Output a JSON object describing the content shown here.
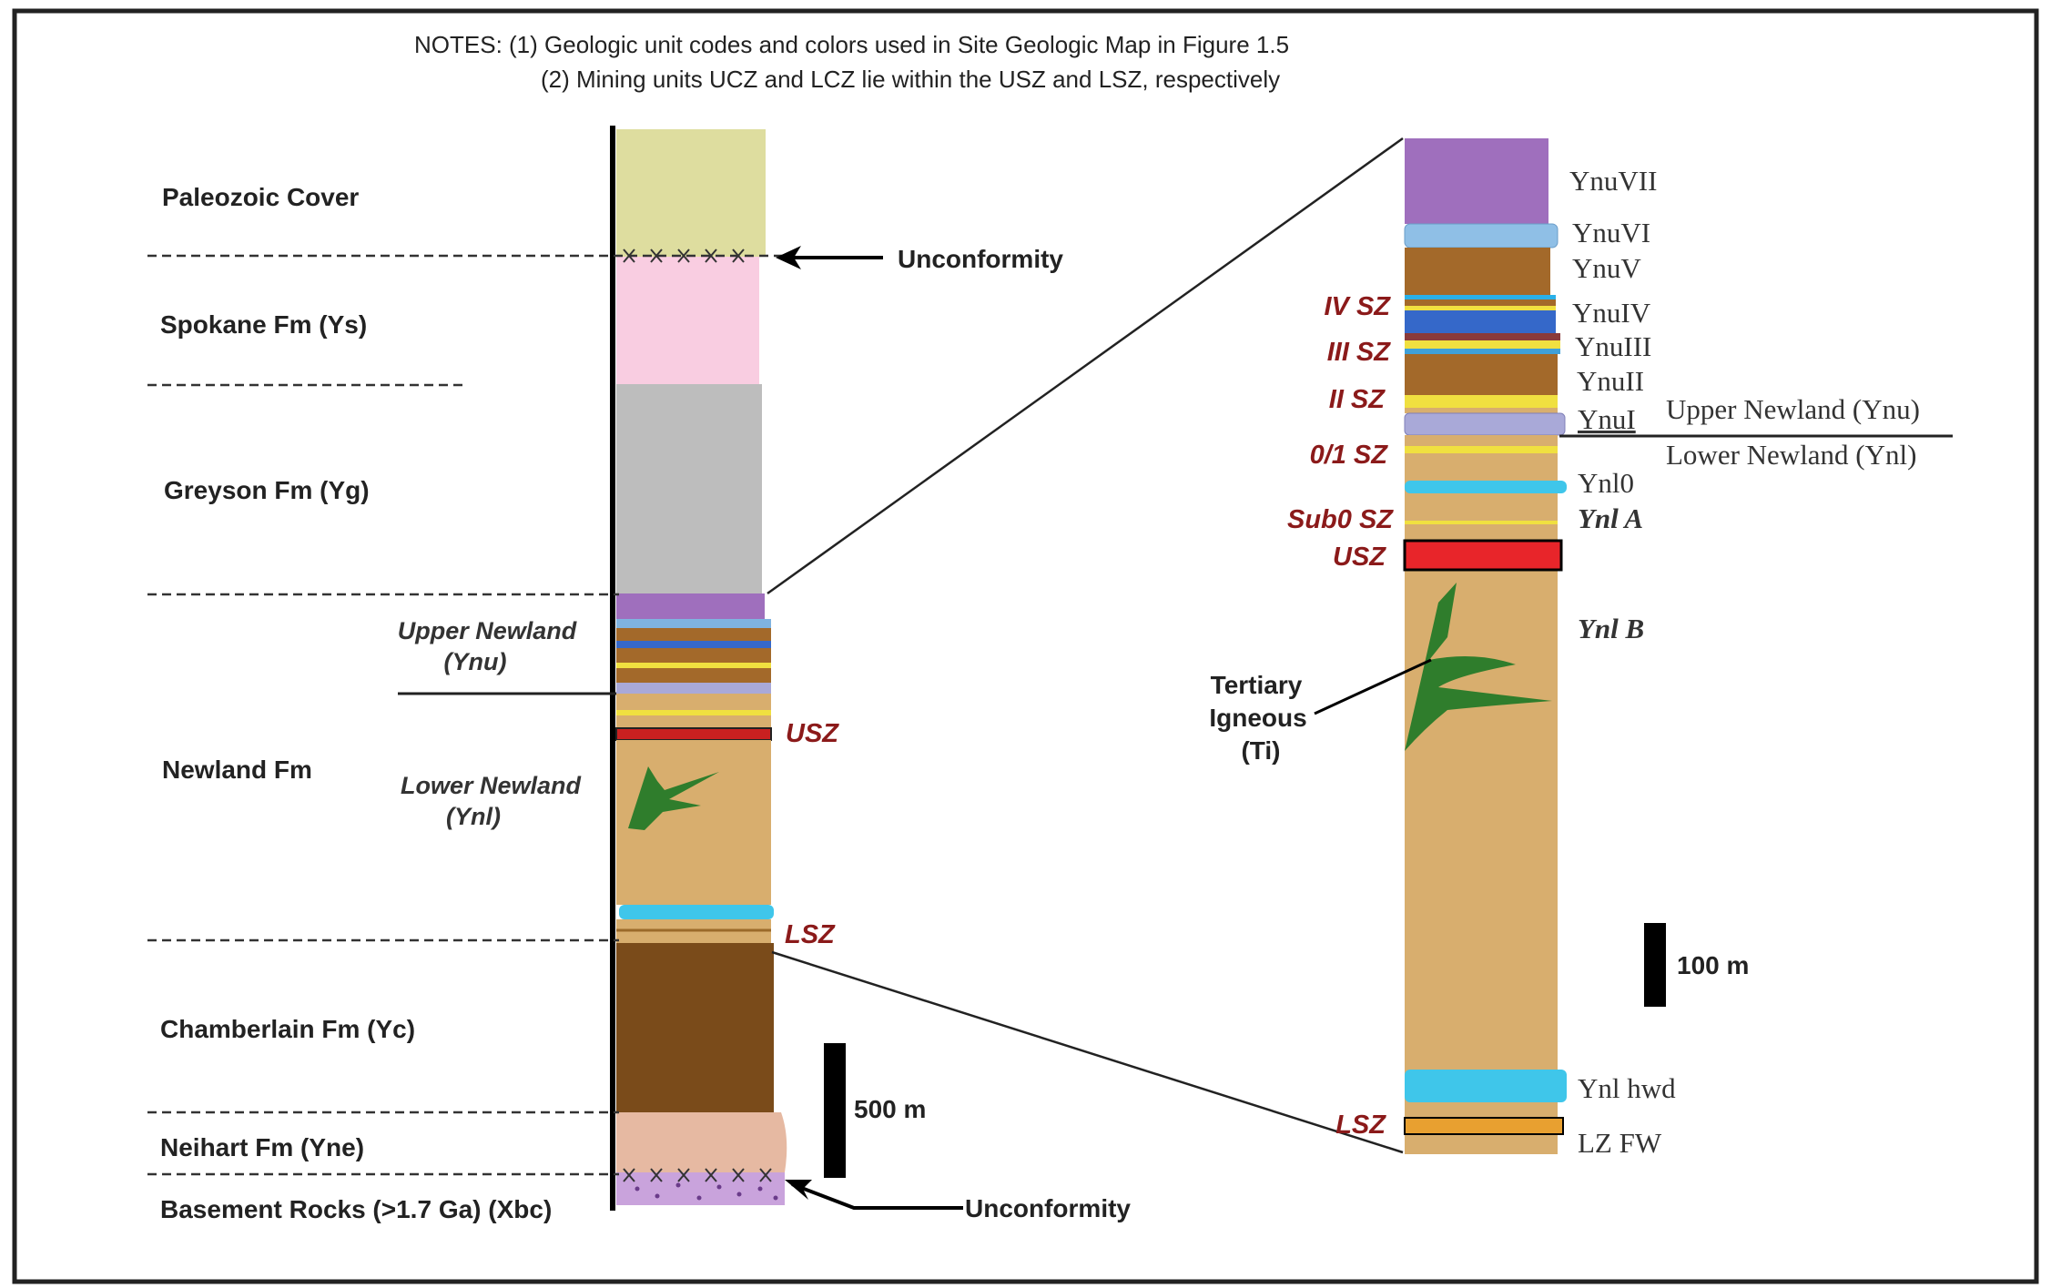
{
  "notes": {
    "line1": "NOTES:  (1) Geologic unit codes and colors used in Site Geologic Map in Figure 1.5",
    "line2": "(2) Mining units UCZ and LCZ lie within the USZ and LSZ, respectively"
  },
  "formations": {
    "paleozoic": "Paleozoic Cover",
    "spokane": "Spokane Fm (Ys)",
    "greyson": "Greyson Fm (Yg)",
    "newland": "Newland Fm",
    "upper_newland_1": "Upper Newland",
    "upper_newland_2": "(Ynu)",
    "lower_newland_1": "Lower Newland",
    "lower_newland_2": "(Ynl)",
    "chamberlain": "Chamberlain Fm (Yc)",
    "neihart": "Neihart Fm (Yne)",
    "basement": "Basement Rocks (>1.7 Ga) (Xbc)"
  },
  "left_zones": {
    "usz": "USZ",
    "lsz": "LSZ"
  },
  "unconformity_top": "Unconformity",
  "unconformity_bottom": "Unconformity",
  "scale_left": "500 m",
  "scale_right": "100 m",
  "detail_units": {
    "ynuvii": "YnuVII",
    "ynuvi": "YnuVI",
    "ynuv": "YnuV",
    "ynuiv": "YnuIV",
    "ynuiii": "YnuIII",
    "ynuii": "YnuII",
    "ynui": "YnuI",
    "upper_newland": "Upper Newland (Ynu)",
    "lower_newland": "Lower Newland (Ynl)",
    "ynl0": "Ynl0",
    "ynla": "Ynl A",
    "ynlb": "Ynl B",
    "ynl_hwd": "Ynl hwd",
    "lz_fw": "LZ FW"
  },
  "detail_zones": {
    "iv": "IV SZ",
    "iii": "III SZ",
    "ii": "II SZ",
    "z01": "0/1 SZ",
    "sub0": "Sub0 SZ",
    "usz": "USZ",
    "lsz": "LSZ"
  },
  "tertiary": {
    "line1": "Tertiary",
    "line2": "Igneous",
    "line3": "(Ti)"
  },
  "colors": {
    "paleozoic": "#dedd9f",
    "spokane": "#f9cde1",
    "greyson": "#bdbdbd",
    "ynu_purple": "#9f6fbd",
    "newland_tan": "#d8ae6e",
    "chamberlain": "#7a4b1a",
    "neihart": "#e6b9a2",
    "basement": "#c9a3dc",
    "cyan": "#3fc6ea",
    "red_zone": "#e8252a",
    "lsz_orange": "#e8a030",
    "intrusive": "#2f7d2c"
  }
}
